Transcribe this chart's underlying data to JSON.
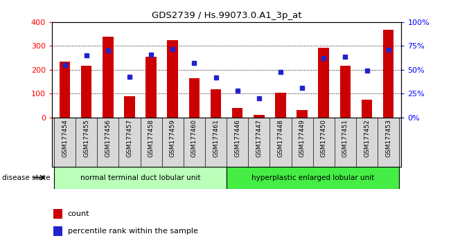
{
  "title": "GDS2739 / Hs.99073.0.A1_3p_at",
  "categories": [
    "GSM177454",
    "GSM177455",
    "GSM177456",
    "GSM177457",
    "GSM177458",
    "GSM177459",
    "GSM177460",
    "GSM177461",
    "GSM177446",
    "GSM177447",
    "GSM177448",
    "GSM177449",
    "GSM177450",
    "GSM177451",
    "GSM177452",
    "GSM177453"
  ],
  "counts": [
    235,
    218,
    340,
    90,
    255,
    325,
    165,
    120,
    40,
    12,
    103,
    32,
    293,
    216,
    75,
    368
  ],
  "percentiles": [
    55,
    65,
    70,
    43,
    66,
    72,
    57,
    42,
    28,
    20,
    48,
    31,
    62,
    64,
    49,
    71
  ],
  "group1_label": "normal terminal duct lobular unit",
  "group2_label": "hyperplastic enlarged lobular unit",
  "group1_count": 8,
  "group2_count": 8,
  "bar_color": "#cc0000",
  "dot_color": "#2222cc",
  "left_ylim": [
    0,
    400
  ],
  "right_ylim": [
    0,
    100
  ],
  "left_yticks": [
    0,
    100,
    200,
    300,
    400
  ],
  "right_yticks": [
    0,
    25,
    50,
    75,
    100
  ],
  "right_yticklabels": [
    "0%",
    "25%",
    "50%",
    "75%",
    "100%"
  ],
  "group1_color": "#bbffbb",
  "group2_color": "#44ee44",
  "disease_label": "disease state",
  "legend_count_label": "count",
  "legend_pct_label": "percentile rank within the sample",
  "tick_bg_color": "#d8d8d8"
}
